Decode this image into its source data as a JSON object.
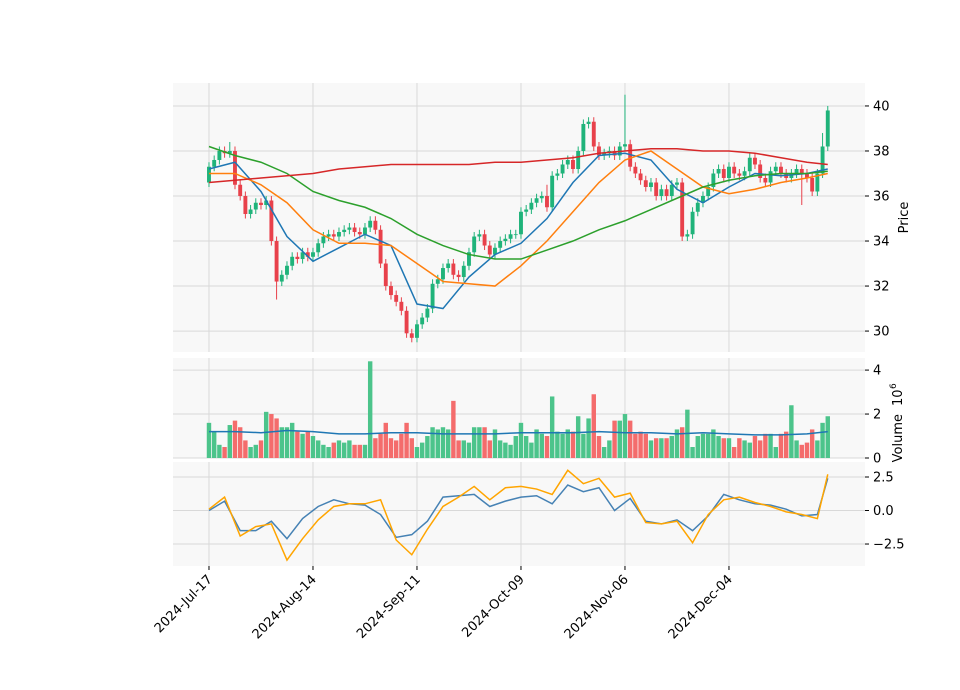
{
  "chart_data": [
    {
      "type": "candlestick",
      "ylabel": "Price",
      "xlim": [
        -6.92,
        126.16
      ],
      "ylim": [
        29.07,
        41.02
      ],
      "yticks": [
        30,
        32,
        34,
        36,
        38,
        40
      ],
      "grid": true,
      "up_color": "#1fb37a",
      "down_color": "#e8414b",
      "open": [
        36.6,
        37.3,
        37.6,
        38.0,
        37.9,
        38.0,
        36.5,
        36.0,
        35.2,
        35.4,
        35.7,
        35.6,
        35.8,
        34.0,
        32.2,
        32.5,
        32.9,
        33.3,
        33.2,
        33.5,
        33.3,
        33.5,
        33.9,
        34.2,
        34.3,
        34.2,
        34.4,
        34.5,
        34.6,
        34.4,
        34.3,
        34.6,
        34.9,
        34.5,
        33.0,
        32.0,
        31.6,
        31.3,
        30.9,
        29.9,
        29.7,
        30.3,
        30.6,
        31.0,
        32.1,
        32.3,
        32.8,
        33.0,
        32.5,
        32.4,
        32.9,
        33.5,
        34.2,
        34.3,
        33.8,
        33.4,
        33.7,
        34.0,
        34.1,
        34.3,
        34.3,
        35.3,
        35.4,
        35.7,
        35.9,
        36.0,
        35.5,
        36.9,
        37.0,
        37.4,
        37.6,
        37.2,
        38.0,
        39.2,
        39.3,
        38.2,
        37.8,
        37.9,
        38.0,
        37.8,
        38.2,
        38.3,
        37.3,
        37.0,
        36.7,
        36.4,
        36.6,
        36.0,
        36.3,
        36.0,
        36.5,
        36.6,
        34.2,
        34.3,
        35.3,
        35.7,
        36.0,
        36.4,
        37.0,
        37.2,
        36.8,
        37.3,
        37.0,
        36.9,
        37.1,
        37.7,
        37.4,
        36.8,
        36.6,
        37.1,
        37.3,
        37.0,
        36.8,
        37.0,
        37.2,
        37.0,
        36.8,
        36.2,
        37.0,
        38.2
      ],
      "high": [
        37.5,
        37.8,
        38.2,
        38.2,
        38.4,
        38.2,
        36.7,
        36.2,
        35.6,
        35.9,
        35.9,
        36.0,
        36.0,
        34.2,
        32.7,
        33.1,
        33.5,
        33.5,
        33.7,
        33.7,
        33.7,
        34.1,
        34.4,
        34.5,
        34.5,
        34.6,
        34.7,
        34.8,
        34.8,
        34.6,
        34.8,
        35.1,
        35.1,
        34.7,
        33.2,
        32.2,
        31.8,
        31.5,
        31.1,
        30.1,
        30.5,
        30.8,
        31.2,
        32.3,
        32.5,
        33.0,
        33.2,
        33.2,
        32.7,
        33.1,
        33.7,
        34.4,
        34.5,
        34.5,
        34.0,
        33.9,
        34.2,
        34.3,
        34.5,
        34.5,
        35.5,
        35.6,
        35.9,
        36.1,
        36.2,
        36.5,
        37.1,
        37.2,
        37.6,
        37.8,
        37.8,
        38.2,
        39.4,
        39.5,
        39.5,
        38.4,
        38.1,
        38.2,
        38.2,
        38.4,
        40.5,
        38.5,
        37.5,
        37.2,
        36.9,
        36.8,
        36.8,
        36.5,
        36.5,
        36.7,
        36.8,
        36.8,
        34.5,
        35.5,
        35.9,
        36.2,
        36.6,
        37.2,
        37.4,
        37.4,
        37.5,
        37.5,
        37.2,
        37.3,
        37.9,
        37.9,
        37.6,
        37.0,
        37.3,
        37.5,
        37.5,
        37.2,
        37.2,
        37.4,
        37.4,
        37.2,
        37.0,
        37.2,
        38.8,
        40.0
      ],
      "low": [
        36.4,
        37.1,
        37.4,
        37.7,
        37.7,
        36.3,
        35.8,
        35.0,
        35.0,
        35.2,
        35.4,
        35.4,
        33.8,
        31.4,
        32.0,
        32.3,
        32.7,
        33.0,
        33.0,
        33.1,
        33.1,
        33.3,
        33.7,
        34.0,
        34.0,
        34.0,
        34.2,
        34.3,
        34.2,
        34.1,
        34.1,
        34.4,
        34.3,
        32.8,
        31.8,
        31.4,
        31.1,
        30.7,
        29.7,
        29.5,
        29.5,
        30.1,
        30.4,
        30.8,
        31.9,
        32.1,
        32.6,
        32.3,
        32.2,
        32.2,
        32.7,
        33.3,
        34.0,
        33.6,
        33.2,
        33.2,
        33.5,
        33.8,
        33.9,
        34.1,
        34.1,
        35.1,
        35.2,
        35.5,
        35.7,
        35.3,
        35.3,
        36.7,
        36.8,
        37.2,
        37.0,
        37.0,
        37.8,
        39.0,
        38.0,
        37.6,
        37.6,
        37.7,
        37.6,
        37.6,
        38.0,
        37.1,
        36.8,
        36.5,
        36.2,
        36.2,
        35.8,
        35.8,
        35.8,
        35.8,
        36.3,
        34.0,
        34.0,
        34.1,
        35.1,
        35.5,
        35.8,
        36.2,
        36.8,
        36.6,
        36.6,
        36.8,
        36.7,
        36.7,
        36.9,
        37.2,
        36.6,
        36.4,
        36.4,
        36.9,
        36.8,
        36.6,
        36.6,
        36.8,
        35.6,
        36.6,
        36.0,
        36.0,
        36.8,
        38.0
      ],
      "close": [
        37.3,
        37.6,
        38.0,
        37.9,
        38.0,
        36.5,
        36.0,
        35.2,
        35.4,
        35.7,
        35.6,
        35.8,
        34.0,
        32.2,
        32.5,
        32.9,
        33.3,
        33.2,
        33.5,
        33.3,
        33.5,
        33.9,
        34.2,
        34.3,
        34.2,
        34.4,
        34.5,
        34.6,
        34.4,
        34.3,
        34.6,
        34.9,
        34.5,
        33.0,
        32.0,
        31.6,
        31.3,
        30.9,
        29.9,
        29.7,
        30.3,
        30.6,
        31.0,
        32.1,
        32.3,
        32.8,
        33.0,
        32.5,
        32.4,
        32.9,
        33.5,
        34.2,
        34.3,
        33.8,
        33.4,
        33.7,
        34.0,
        34.1,
        34.3,
        34.3,
        35.3,
        35.4,
        35.7,
        35.9,
        36.0,
        35.5,
        36.9,
        37.0,
        37.4,
        37.6,
        37.2,
        38.0,
        39.2,
        39.3,
        38.2,
        37.8,
        37.9,
        38.0,
        37.8,
        38.2,
        38.3,
        37.3,
        37.0,
        36.7,
        36.4,
        36.6,
        36.0,
        36.3,
        36.0,
        36.5,
        36.6,
        34.2,
        34.3,
        35.3,
        35.7,
        36.0,
        36.4,
        37.0,
        37.2,
        36.8,
        37.3,
        37.0,
        36.9,
        37.1,
        37.7,
        37.4,
        36.8,
        36.6,
        37.1,
        37.3,
        37.0,
        36.8,
        37.0,
        37.2,
        37.0,
        36.8,
        36.2,
        37.0,
        38.2,
        39.8
      ],
      "lines": [
        {
          "color": "#1f77b4",
          "x": [
            0,
            5,
            10,
            15,
            20,
            25,
            30,
            35,
            40,
            45,
            50,
            55,
            60,
            65,
            70,
            75,
            80,
            85,
            90,
            95,
            100,
            105,
            110,
            115,
            119
          ],
          "values": [
            37.2,
            37.5,
            36.2,
            34.2,
            33.1,
            33.7,
            34.3,
            33.8,
            31.2,
            31.0,
            32.4,
            33.4,
            33.9,
            35.0,
            36.6,
            37.8,
            37.9,
            37.6,
            36.3,
            35.7,
            36.4,
            37.0,
            36.9,
            37.0,
            37.2
          ]
        },
        {
          "color": "#ff7f0e",
          "x": [
            0,
            5,
            10,
            15,
            20,
            25,
            30,
            35,
            40,
            45,
            50,
            55,
            60,
            65,
            70,
            75,
            80,
            85,
            90,
            95,
            100,
            105,
            110,
            115,
            119
          ],
          "values": [
            37.0,
            37.0,
            36.5,
            35.7,
            34.5,
            33.9,
            33.9,
            33.8,
            33.0,
            32.2,
            32.1,
            32.0,
            32.9,
            34.0,
            35.3,
            36.6,
            37.6,
            38.0,
            37.2,
            36.4,
            36.1,
            36.3,
            36.6,
            36.8,
            37.0
          ]
        },
        {
          "color": "#2ca02c",
          "x": [
            0,
            5,
            10,
            15,
            20,
            25,
            30,
            35,
            40,
            45,
            50,
            55,
            60,
            65,
            70,
            75,
            80,
            85,
            90,
            95,
            100,
            105,
            110,
            115,
            119
          ],
          "values": [
            38.2,
            37.8,
            37.5,
            37.0,
            36.2,
            35.8,
            35.5,
            35.0,
            34.3,
            33.8,
            33.4,
            33.2,
            33.2,
            33.6,
            34.0,
            34.5,
            34.9,
            35.4,
            35.9,
            36.4,
            36.7,
            36.9,
            37.0,
            37.0,
            37.1
          ]
        },
        {
          "color": "#d62728",
          "x": [
            0,
            5,
            10,
            15,
            20,
            25,
            30,
            35,
            40,
            45,
            50,
            55,
            60,
            65,
            70,
            75,
            80,
            85,
            90,
            95,
            100,
            105,
            110,
            115,
            119
          ],
          "values": [
            36.6,
            36.7,
            36.8,
            36.9,
            37.0,
            37.2,
            37.3,
            37.4,
            37.4,
            37.4,
            37.4,
            37.5,
            37.5,
            37.6,
            37.7,
            37.9,
            38.0,
            38.1,
            38.1,
            38.0,
            38.0,
            37.9,
            37.7,
            37.5,
            37.4
          ]
        }
      ]
    },
    {
      "type": "bar",
      "ylabel": "Volume",
      "scale_base": "10",
      "scale_exponent": "6",
      "xlim": [
        -6.92,
        126.16
      ],
      "ylim": [
        0,
        4.55
      ],
      "yticks": [
        0,
        2,
        4
      ],
      "grid": true,
      "up_color": "#4cc48b",
      "down_color": "#f46c6c",
      "values": [
        1.6,
        1.2,
        0.6,
        0.5,
        1.5,
        1.7,
        1.4,
        0.8,
        0.5,
        0.6,
        0.8,
        2.1,
        2.0,
        1.8,
        1.4,
        1.4,
        1.6,
        1.2,
        1.1,
        1.2,
        1.0,
        0.8,
        0.6,
        0.5,
        0.7,
        0.8,
        0.7,
        0.8,
        0.6,
        0.6,
        0.6,
        4.4,
        0.9,
        1.1,
        1.6,
        0.9,
        0.8,
        1.1,
        1.6,
        0.9,
        0.5,
        0.7,
        1.0,
        1.4,
        1.3,
        1.4,
        1.3,
        2.6,
        0.8,
        0.8,
        0.7,
        1.4,
        1.4,
        1.4,
        0.8,
        1.3,
        0.8,
        0.7,
        0.6,
        1.0,
        1.6,
        1.0,
        0.7,
        1.3,
        1.1,
        1.0,
        2.8,
        1.2,
        1.1,
        1.3,
        1.2,
        1.9,
        1.1,
        1.8,
        2.9,
        1.0,
        0.5,
        0.8,
        1.7,
        1.7,
        2.0,
        1.7,
        1.1,
        1.2,
        1.1,
        0.8,
        0.9,
        0.9,
        0.9,
        1.0,
        1.3,
        1.4,
        2.2,
        0.5,
        1.0,
        1.1,
        1.1,
        1.3,
        1.0,
        0.9,
        0.9,
        0.5,
        0.9,
        0.8,
        0.7,
        1.0,
        0.8,
        1.1,
        1.1,
        0.5,
        1.1,
        1.2,
        2.4,
        0.8,
        0.6,
        0.7,
        1.3,
        0.8,
        1.6,
        1.9
      ],
      "line": {
        "color": "#1f77b4",
        "x": [
          0,
          5,
          10,
          15,
          20,
          25,
          30,
          35,
          40,
          45,
          50,
          55,
          60,
          65,
          70,
          75,
          80,
          85,
          90,
          95,
          100,
          105,
          110,
          115,
          119
        ],
        "values": [
          1.2,
          1.2,
          1.15,
          1.25,
          1.2,
          1.1,
          1.1,
          1.15,
          1.15,
          1.1,
          1.1,
          1.1,
          1.15,
          1.15,
          1.15,
          1.2,
          1.15,
          1.15,
          1.1,
          1.15,
          1.1,
          1.05,
          1.05,
          1.1,
          1.2
        ]
      }
    },
    {
      "type": "line",
      "xlim": [
        -6.92,
        126.16
      ],
      "ylim": [
        -4.14,
        3.62
      ],
      "grid": true,
      "yticks": [
        {
          "value": -2.5,
          "label": "−2.5"
        },
        {
          "value": 0,
          "label": "0.0"
        },
        {
          "value": 2.5,
          "label": "2.5"
        }
      ],
      "xticks": [
        {
          "value": 0,
          "label": "2024-Jul-17"
        },
        {
          "value": 20,
          "label": "2024-Aug-14"
        },
        {
          "value": 40,
          "label": "2024-Sep-11"
        },
        {
          "value": 60,
          "label": "2024-Oct-09"
        },
        {
          "value": 80,
          "label": "2024-Nov-06"
        },
        {
          "value": 100,
          "label": "2024-Dec-04"
        }
      ],
      "series": [
        {
          "color": "#4682b4",
          "x": [
            0,
            3,
            6,
            9,
            12,
            15,
            18,
            21,
            24,
            27,
            30,
            33,
            36,
            39,
            42,
            45,
            48,
            51,
            54,
            57,
            60,
            63,
            66,
            69,
            72,
            75,
            78,
            81,
            84,
            87,
            90,
            93,
            96,
            99,
            102,
            105,
            108,
            111,
            114,
            117,
            119
          ],
          "values": [
            0,
            0.7,
            -1.5,
            -1.5,
            -0.8,
            -2.1,
            -0.6,
            0.3,
            0.8,
            0.5,
            0.4,
            -0.3,
            -2.0,
            -1.8,
            -0.8,
            1.0,
            1.1,
            1.2,
            0.3,
            0.7,
            1.0,
            1.1,
            0.5,
            1.9,
            1.4,
            1.7,
            0.0,
            0.9,
            -0.8,
            -1.0,
            -0.7,
            -1.5,
            -0.4,
            1.2,
            0.8,
            0.5,
            0.4,
            0.1,
            -0.4,
            -0.3,
            2.4
          ]
        },
        {
          "color": "#ffa500",
          "x": [
            0,
            3,
            6,
            9,
            12,
            15,
            18,
            21,
            24,
            27,
            30,
            33,
            36,
            39,
            42,
            45,
            48,
            51,
            54,
            57,
            60,
            63,
            66,
            69,
            72,
            75,
            78,
            81,
            84,
            87,
            90,
            93,
            96,
            99,
            102,
            105,
            108,
            111,
            114,
            117,
            119
          ],
          "values": [
            0.1,
            1.0,
            -1.9,
            -1.2,
            -1.0,
            -3.7,
            -2.1,
            -0.7,
            0.3,
            0.5,
            0.5,
            0.8,
            -2.2,
            -3.3,
            -1.4,
            0.3,
            1.0,
            1.8,
            0.8,
            1.7,
            1.8,
            1.6,
            1.2,
            3.0,
            2.0,
            2.4,
            1.0,
            1.3,
            -0.9,
            -1.0,
            -0.8,
            -2.4,
            -0.3,
            0.8,
            1.0,
            0.6,
            0.3,
            -0.1,
            -0.3,
            -0.6,
            2.7
          ]
        }
      ]
    }
  ]
}
